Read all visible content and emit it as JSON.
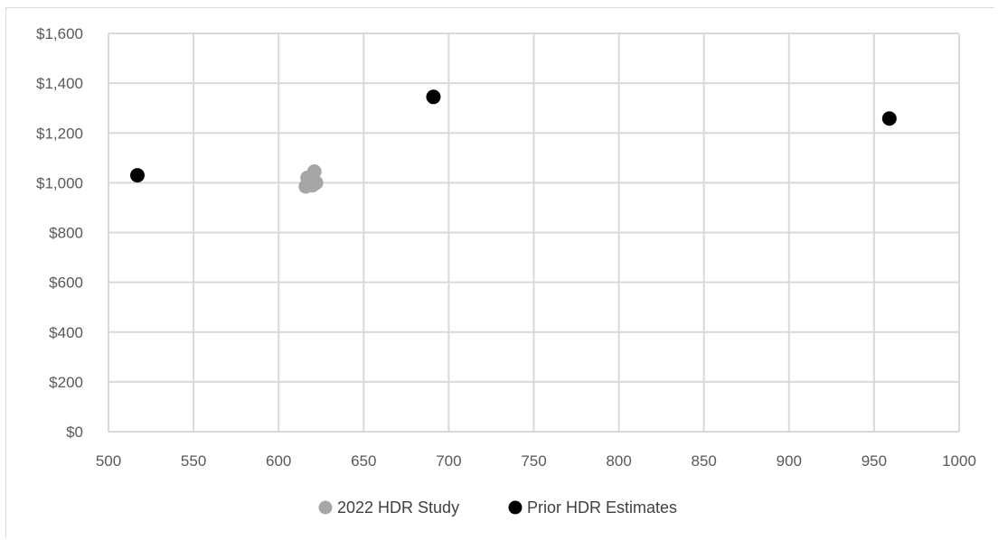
{
  "chart_data": {
    "type": "scatter",
    "title": "",
    "xlabel": "",
    "ylabel": "",
    "xlim": [
      500,
      1000
    ],
    "ylim": [
      0,
      1600
    ],
    "x_ticks": [
      500,
      550,
      600,
      650,
      700,
      750,
      800,
      850,
      900,
      950,
      1000
    ],
    "y_ticks": [
      0,
      200,
      400,
      600,
      800,
      1000,
      1200,
      1400,
      1600
    ],
    "x_tick_labels": [
      "500",
      "550",
      "600",
      "650",
      "700",
      "750",
      "800",
      "850",
      "900",
      "950",
      "1000"
    ],
    "y_tick_labels": [
      "$0",
      "$200",
      "$400",
      "$600",
      "$800",
      "$1,000",
      "$1,200",
      "$1,400",
      "$1,600"
    ],
    "grid": true,
    "legend_position": "bottom",
    "series": [
      {
        "name": "2022 HDR Study",
        "color": "#a6a6a6",
        "points": [
          {
            "x": 617,
            "y": 1020
          },
          {
            "x": 621,
            "y": 1045
          },
          {
            "x": 618,
            "y": 995
          },
          {
            "x": 622,
            "y": 1000
          },
          {
            "x": 616,
            "y": 985
          },
          {
            "x": 620,
            "y": 990
          },
          {
            "x": 619,
            "y": 1010
          }
        ]
      },
      {
        "name": "Prior HDR Estimates",
        "color": "#000000",
        "points": [
          {
            "x": 517,
            "y": 1030
          },
          {
            "x": 691,
            "y": 1345
          },
          {
            "x": 959,
            "y": 1258
          }
        ]
      }
    ]
  }
}
